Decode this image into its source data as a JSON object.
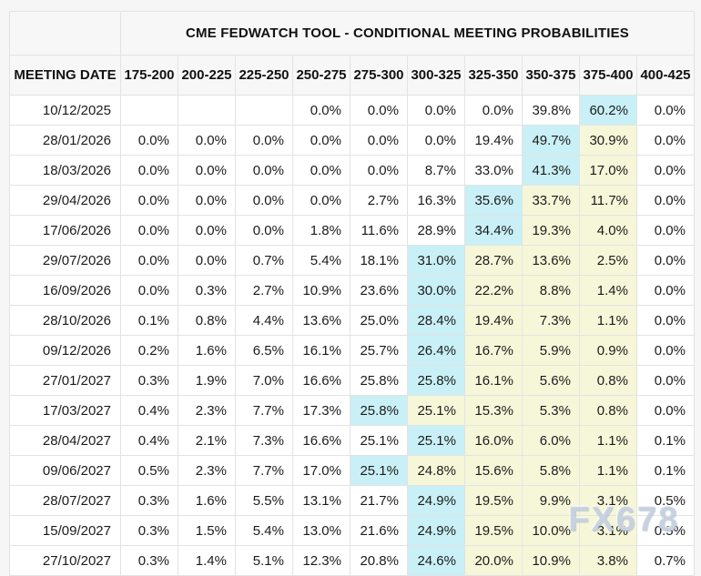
{
  "table": {
    "title": "CME FEDWATCH TOOL - CONDITIONAL MEETING PROBABILITIES",
    "date_header": "MEETING DATE",
    "rate_headers": [
      "175-200",
      "200-225",
      "225-250",
      "250-275",
      "275-300",
      "300-325",
      "325-350",
      "350-375",
      "375-400",
      "400-425"
    ],
    "rows": [
      {
        "date": "10/12/2025",
        "values": [
          "",
          "",
          "",
          "0.0%",
          "0.0%",
          "0.0%",
          "0.0%",
          "39.8%",
          "60.2%",
          "0.0%"
        ],
        "bg": [
          "",
          "",
          "",
          "",
          "",
          "",
          "",
          "",
          "c",
          ""
        ]
      },
      {
        "date": "28/01/2026",
        "values": [
          "0.0%",
          "0.0%",
          "0.0%",
          "0.0%",
          "0.0%",
          "0.0%",
          "19.4%",
          "49.7%",
          "30.9%",
          "0.0%"
        ],
        "bg": [
          "",
          "",
          "",
          "",
          "",
          "",
          "",
          "c",
          "y",
          ""
        ]
      },
      {
        "date": "18/03/2026",
        "values": [
          "0.0%",
          "0.0%",
          "0.0%",
          "0.0%",
          "0.0%",
          "8.7%",
          "33.0%",
          "41.3%",
          "17.0%",
          "0.0%"
        ],
        "bg": [
          "",
          "",
          "",
          "",
          "",
          "",
          "",
          "c",
          "y",
          ""
        ]
      },
      {
        "date": "29/04/2026",
        "values": [
          "0.0%",
          "0.0%",
          "0.0%",
          "0.0%",
          "2.7%",
          "16.3%",
          "35.6%",
          "33.7%",
          "11.7%",
          "0.0%"
        ],
        "bg": [
          "",
          "",
          "",
          "",
          "",
          "",
          "c",
          "y",
          "y",
          ""
        ]
      },
      {
        "date": "17/06/2026",
        "values": [
          "0.0%",
          "0.0%",
          "0.0%",
          "1.8%",
          "11.6%",
          "28.9%",
          "34.4%",
          "19.3%",
          "4.0%",
          "0.0%"
        ],
        "bg": [
          "",
          "",
          "",
          "",
          "",
          "",
          "c",
          "y",
          "y",
          ""
        ]
      },
      {
        "date": "29/07/2026",
        "values": [
          "0.0%",
          "0.0%",
          "0.7%",
          "5.4%",
          "18.1%",
          "31.0%",
          "28.7%",
          "13.6%",
          "2.5%",
          "0.0%"
        ],
        "bg": [
          "",
          "",
          "",
          "",
          "",
          "c",
          "y",
          "y",
          "y",
          ""
        ]
      },
      {
        "date": "16/09/2026",
        "values": [
          "0.0%",
          "0.3%",
          "2.7%",
          "10.9%",
          "23.6%",
          "30.0%",
          "22.2%",
          "8.8%",
          "1.4%",
          "0.0%"
        ],
        "bg": [
          "",
          "",
          "",
          "",
          "",
          "c",
          "y",
          "y",
          "y",
          ""
        ]
      },
      {
        "date": "28/10/2026",
        "values": [
          "0.1%",
          "0.8%",
          "4.4%",
          "13.6%",
          "25.0%",
          "28.4%",
          "19.4%",
          "7.3%",
          "1.1%",
          "0.0%"
        ],
        "bg": [
          "",
          "",
          "",
          "",
          "",
          "c",
          "y",
          "y",
          "y",
          ""
        ]
      },
      {
        "date": "09/12/2026",
        "values": [
          "0.2%",
          "1.6%",
          "6.5%",
          "16.1%",
          "25.7%",
          "26.4%",
          "16.7%",
          "5.9%",
          "0.9%",
          "0.0%"
        ],
        "bg": [
          "",
          "",
          "",
          "",
          "",
          "c",
          "y",
          "y",
          "y",
          ""
        ]
      },
      {
        "date": "27/01/2027",
        "values": [
          "0.3%",
          "1.9%",
          "7.0%",
          "16.6%",
          "25.8%",
          "25.8%",
          "16.1%",
          "5.6%",
          "0.8%",
          "0.0%"
        ],
        "bg": [
          "",
          "",
          "",
          "",
          "",
          "c",
          "y",
          "y",
          "y",
          ""
        ]
      },
      {
        "date": "17/03/2027",
        "values": [
          "0.4%",
          "2.3%",
          "7.7%",
          "17.3%",
          "25.8%",
          "25.1%",
          "15.3%",
          "5.3%",
          "0.8%",
          "0.0%"
        ],
        "bg": [
          "",
          "",
          "",
          "",
          "c",
          "y",
          "y",
          "y",
          "y",
          ""
        ]
      },
      {
        "date": "28/04/2027",
        "values": [
          "0.4%",
          "2.1%",
          "7.3%",
          "16.6%",
          "25.1%",
          "25.1%",
          "16.0%",
          "6.0%",
          "1.1%",
          "0.1%"
        ],
        "bg": [
          "",
          "",
          "",
          "",
          "",
          "c",
          "y",
          "y",
          "y",
          ""
        ]
      },
      {
        "date": "09/06/2027",
        "values": [
          "0.5%",
          "2.3%",
          "7.7%",
          "17.0%",
          "25.1%",
          "24.8%",
          "15.6%",
          "5.8%",
          "1.1%",
          "0.1%"
        ],
        "bg": [
          "",
          "",
          "",
          "",
          "c",
          "y",
          "y",
          "y",
          "y",
          ""
        ]
      },
      {
        "date": "28/07/2027",
        "values": [
          "0.3%",
          "1.6%",
          "5.5%",
          "13.1%",
          "21.7%",
          "24.9%",
          "19.5%",
          "9.9%",
          "3.1%",
          "0.5%"
        ],
        "bg": [
          "",
          "",
          "",
          "",
          "",
          "c",
          "y",
          "y",
          "y",
          ""
        ]
      },
      {
        "date": "15/09/2027",
        "values": [
          "0.3%",
          "1.5%",
          "5.4%",
          "13.0%",
          "21.6%",
          "24.9%",
          "19.5%",
          "10.0%",
          "3.1%",
          "0.5%"
        ],
        "bg": [
          "",
          "",
          "",
          "",
          "",
          "c",
          "y",
          "y",
          "y",
          ""
        ]
      },
      {
        "date": "27/10/2027",
        "values": [
          "0.3%",
          "1.4%",
          "5.1%",
          "12.3%",
          "20.8%",
          "24.6%",
          "20.0%",
          "10.9%",
          "3.8%",
          "0.7%"
        ],
        "bg": [
          "",
          "",
          "",
          "",
          "",
          "c",
          "y",
          "y",
          "y",
          ""
        ]
      }
    ],
    "colors": {
      "highlight_cyan": "#c9f0f6",
      "highlight_yellow": "#f6f7d9",
      "border": "#e3e3e3",
      "header_bg": "#f7f7f7",
      "cell_bg": "#ffffff",
      "page_bg": "#f6f6f6",
      "text": "#1b1b1b"
    }
  },
  "watermark": {
    "text": "FX678"
  }
}
